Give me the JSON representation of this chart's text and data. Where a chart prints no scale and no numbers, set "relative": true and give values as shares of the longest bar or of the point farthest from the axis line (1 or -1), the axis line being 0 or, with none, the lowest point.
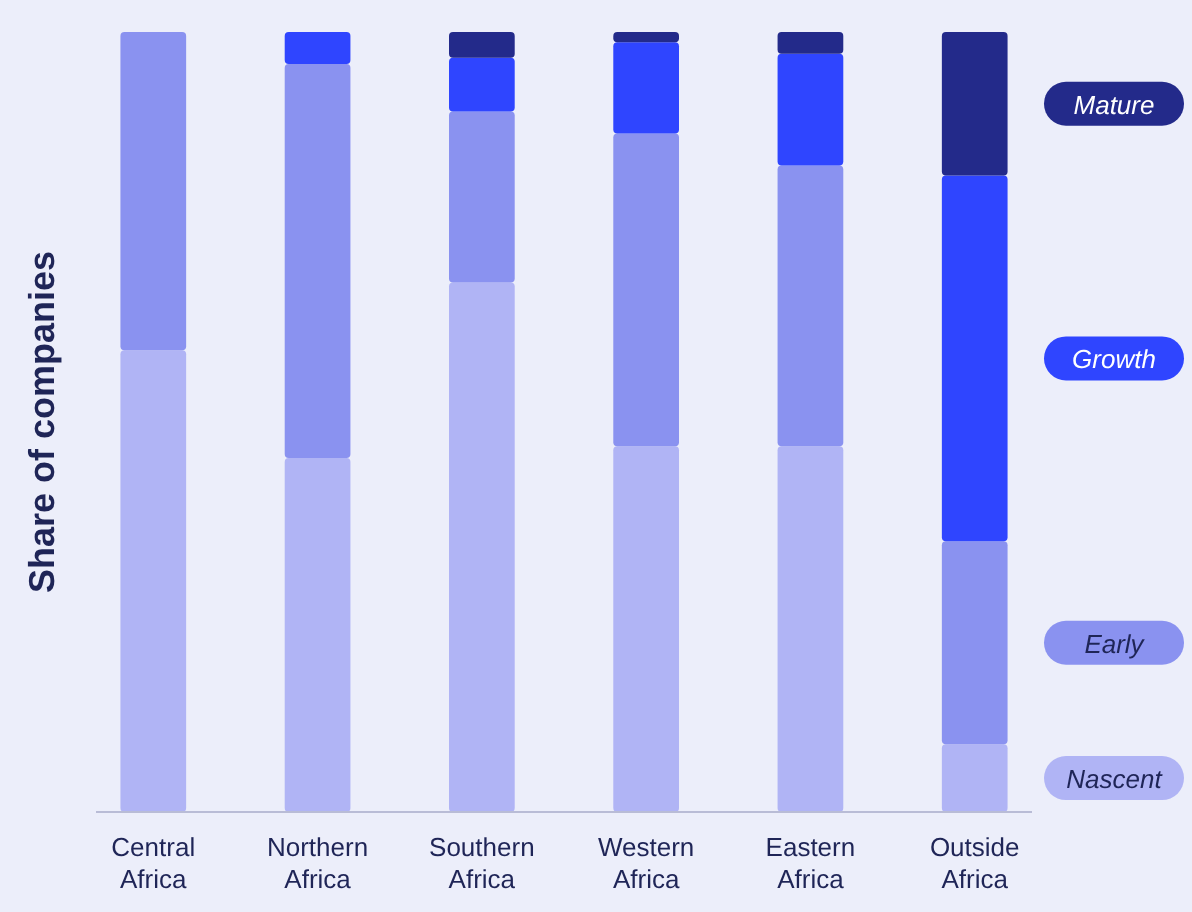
{
  "chart_data": {
    "type": "bar",
    "stacked": true,
    "relative": true,
    "ylabel": "Share of companies",
    "legend": "right",
    "categories": [
      "Central\nAfrica",
      "Northern\nAfrica",
      "Southern\nAfrica",
      "Western\nAfrica",
      "Eastern\nAfrica",
      "Outside\nAfrica"
    ],
    "series": [
      {
        "name": "Nascent",
        "color": "#b0b4f5",
        "values": [
          0.592,
          0.454,
          0.679,
          0.469,
          0.469,
          0.087
        ]
      },
      {
        "name": "Early",
        "color": "#8a92f0",
        "values": [
          0.408,
          0.505,
          0.219,
          0.401,
          0.36,
          0.26
        ]
      },
      {
        "name": "Growth",
        "color": "#2f45ff",
        "values": [
          0,
          0.041,
          0.069,
          0.117,
          0.143,
          0.469
        ]
      },
      {
        "name": "Mature",
        "color": "#232a8a",
        "values": [
          0,
          0,
          0.033,
          0.013,
          0.028,
          0.184
        ]
      }
    ]
  }
}
